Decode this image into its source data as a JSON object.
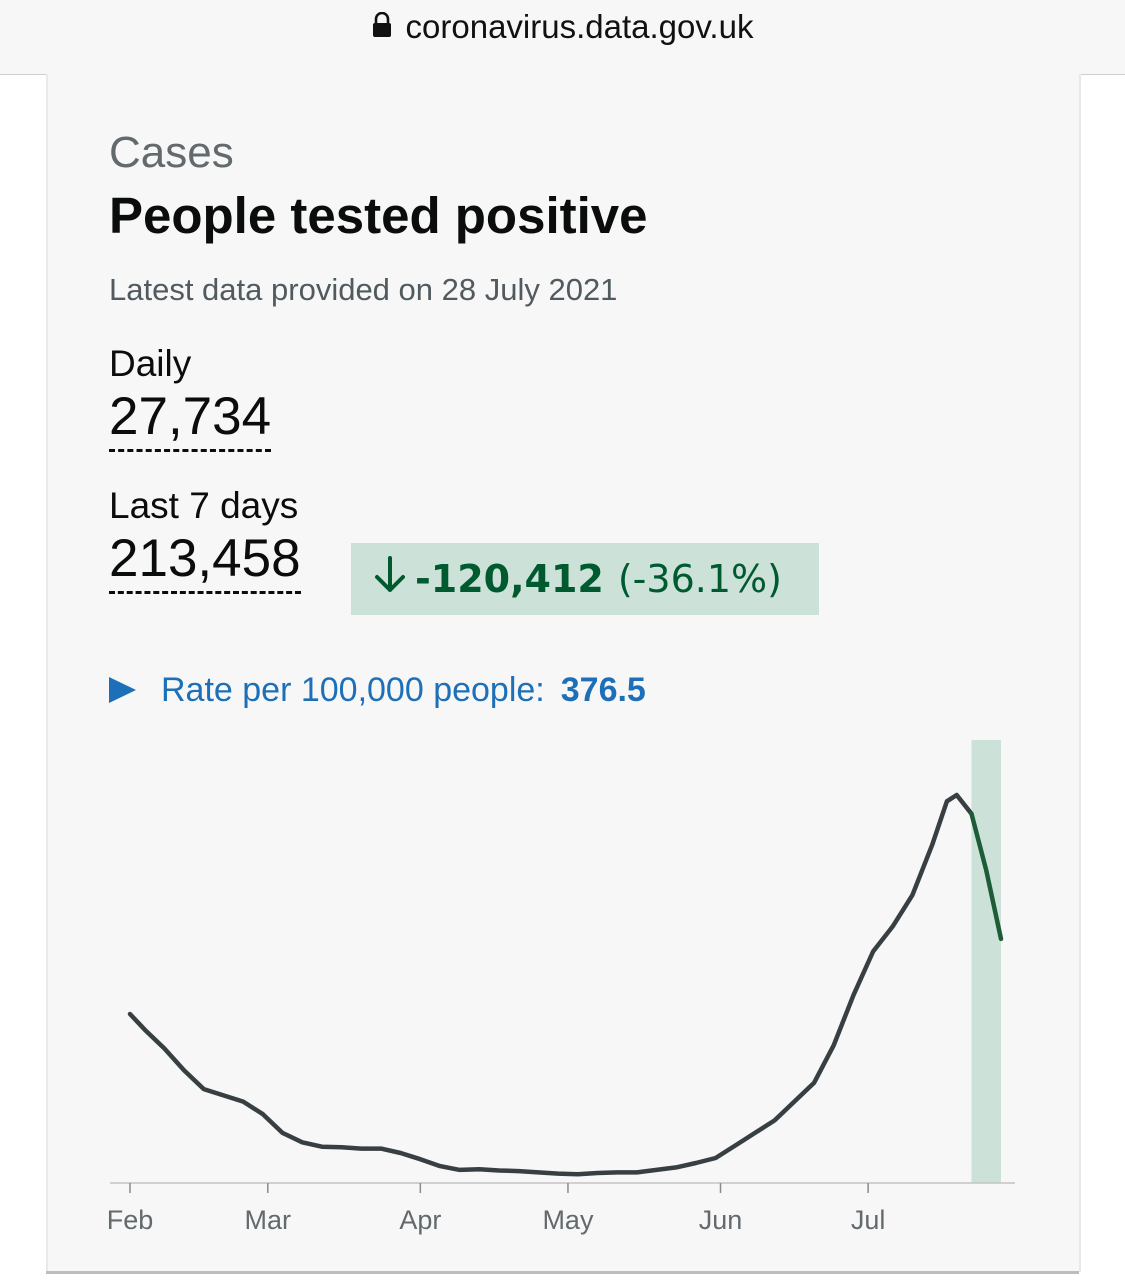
{
  "browser": {
    "url": "coronavirus.data.gov.uk"
  },
  "card": {
    "caption": "Cases",
    "title": "People tested positive",
    "latest_text": "Latest data provided on 28 July 2021",
    "daily": {
      "label": "Daily",
      "value": "27,734"
    },
    "last7": {
      "label": "Last 7 days",
      "value": "213,458"
    },
    "change": {
      "value": "-120,412",
      "percent": "(-36.1%)",
      "direction": "down",
      "color": "#005a30",
      "background": "#cce2d8"
    },
    "rate": {
      "label": "Rate per 100,000 people:",
      "value": "376.5"
    }
  },
  "chart_data": {
    "type": "line",
    "title": "",
    "xlabel": "",
    "ylabel": "",
    "ylim": [
      0,
      62000
    ],
    "x_ticks": [
      "Feb",
      "Mar",
      "Apr",
      "May",
      "Jun",
      "Jul"
    ],
    "highlight_range": [
      "22 Jul",
      "28 Jul"
    ],
    "highlight_color": "#cce2d8",
    "series": [
      {
        "color": "#383f43",
        "highlight_color": "#1e5c37",
        "points": [
          [
            "1 Feb",
            27000
          ],
          [
            "4 Feb",
            24500
          ],
          [
            "8 Feb",
            21500
          ],
          [
            "12 Feb",
            18000
          ],
          [
            "16 Feb",
            15000
          ],
          [
            "20 Feb",
            14000
          ],
          [
            "24 Feb",
            13000
          ],
          [
            "28 Feb",
            11000
          ],
          [
            "4 Mar",
            8000
          ],
          [
            "8 Mar",
            6500
          ],
          [
            "12 Mar",
            5800
          ],
          [
            "16 Mar",
            5700
          ],
          [
            "20 Mar",
            5500
          ],
          [
            "24 Mar",
            5500
          ],
          [
            "28 Mar",
            4800
          ],
          [
            "1 Apr",
            3800
          ],
          [
            "5 Apr",
            2700
          ],
          [
            "9 Apr",
            2100
          ],
          [
            "13 Apr",
            2200
          ],
          [
            "17 Apr",
            2000
          ],
          [
            "21 Apr",
            1900
          ],
          [
            "25 Apr",
            1700
          ],
          [
            "29 Apr",
            1500
          ],
          [
            "3 May",
            1400
          ],
          [
            "7 May",
            1600
          ],
          [
            "11 May",
            1700
          ],
          [
            "15 May",
            1700
          ],
          [
            "19 May",
            2100
          ],
          [
            "23 May",
            2500
          ],
          [
            "27 May",
            3200
          ],
          [
            "31 May",
            4000
          ],
          [
            "4 Jun",
            6000
          ],
          [
            "8 Jun",
            8000
          ],
          [
            "12 Jun",
            10000
          ],
          [
            "16 Jun",
            13000
          ],
          [
            "20 Jun",
            16000
          ],
          [
            "24 Jun",
            22000
          ],
          [
            "28 Jun",
            30000
          ],
          [
            "2 Jul",
            37000
          ],
          [
            "6 Jul",
            41000
          ],
          [
            "10 Jul",
            46000
          ],
          [
            "14 Jul",
            54000
          ],
          [
            "17 Jul",
            61000
          ],
          [
            "19 Jul",
            62000
          ],
          [
            "22 Jul",
            59000
          ],
          [
            "25 Jul",
            50000
          ],
          [
            "28 Jul",
            39000
          ]
        ]
      }
    ]
  }
}
